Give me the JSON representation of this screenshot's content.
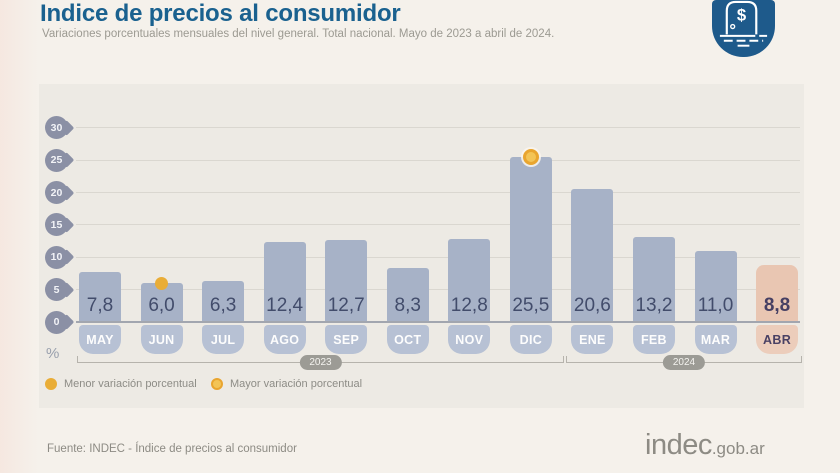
{
  "header": {
    "title": "Indice de precios al consumidor",
    "subtitle": "Variaciones porcentuales mensuales del nivel general. Total nacional. Mayo de 2023 a abril de 2024."
  },
  "chart_data": {
    "type": "bar",
    "title": "Indice de precios al consumidor",
    "subtitle": "Variaciones porcentuales mensuales del nivel general. Total nacional. Mayo de 2023 a abril de 2024.",
    "categories": [
      "MAY",
      "JUN",
      "JUL",
      "AGO",
      "SEP",
      "OCT",
      "NOV",
      "DIC",
      "ENE",
      "FEB",
      "MAR",
      "ABR"
    ],
    "values": [
      7.8,
      6.0,
      6.3,
      12.4,
      12.7,
      8.3,
      12.8,
      25.5,
      20.6,
      13.2,
      11.0,
      8.8
    ],
    "value_labels": [
      "7,8",
      "6,0",
      "6,3",
      "12,4",
      "12,7",
      "8,3",
      "12,8",
      "25,5",
      "20,6",
      "13,2",
      "11,0",
      "8,8"
    ],
    "unit_label": "%",
    "y_ticks": [
      30,
      25,
      20,
      15,
      10,
      5,
      0
    ],
    "ylim": [
      0,
      32
    ],
    "grid": true,
    "highlight_index": 11,
    "min_marker_index": 1,
    "max_marker_index": 7,
    "year_groups": [
      {
        "label": "2023",
        "months": [
          "MAY",
          "JUN",
          "JUL",
          "AGO",
          "SEP",
          "OCT",
          "NOV",
          "DIC"
        ]
      },
      {
        "label": "2024",
        "months": [
          "ENE",
          "FEB",
          "MAR",
          "ABR"
        ]
      }
    ],
    "colors": {
      "bar": "#a7b2c7",
      "bar_highlight": "#e9c6b2",
      "month_badge": "#b7c1d4",
      "month_badge_highlight": "#eccdbb",
      "marker_yellow": "#e9ad37",
      "title_blue": "#1a618f",
      "logo_blue": "#1e5a8b"
    }
  },
  "legend": [
    {
      "label": "Menor variación porcentual",
      "marker": "solid-dot"
    },
    {
      "label": "Mayor variación porcentual",
      "marker": "ring-dot"
    }
  ],
  "footer": {
    "source": "Fuente: INDEC - Índice de precios al consumidor",
    "brand": "indec",
    "brand_suffix": ".gob.ar"
  },
  "logo": {
    "symbol": "$"
  }
}
